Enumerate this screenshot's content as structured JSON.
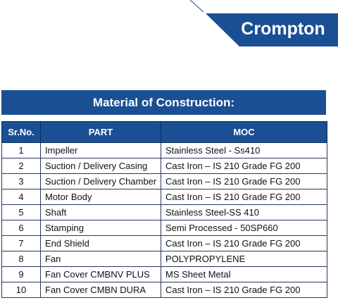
{
  "logo": "Crompton",
  "title": "Material of Construction:",
  "table": {
    "columns": [
      "Sr.No.",
      "PART",
      "MOC"
    ],
    "rows": [
      [
        "1",
        "Impeller",
        "Stainless Steel - Ss410"
      ],
      [
        "2",
        "Suction / Delivery Casing",
        "Cast Iron – IS 210 Grade FG 200"
      ],
      [
        "3",
        "Suction / Delivery Chamber",
        "Cast Iron – IS 210 Grade FG 200"
      ],
      [
        "4",
        "Motor Body",
        "Cast Iron – IS 210 Grade FG 200"
      ],
      [
        "5",
        "Shaft",
        "Stainless Steel-SS 410"
      ],
      [
        "6",
        "Stamping",
        "Semi Processed - 50SP660"
      ],
      [
        "7",
        "End Shield",
        "Cast Iron – IS 210 Grade FG 200"
      ],
      [
        "8",
        "Fan",
        "POLYPROPYLENE"
      ],
      [
        "9",
        "Fan Cover CMBNV PLUS",
        "MS Sheet Metal"
      ],
      [
        "10",
        "Fan Cover CMBN DURA",
        "Cast Iron – IS 210 Grade FG 200"
      ]
    ]
  }
}
